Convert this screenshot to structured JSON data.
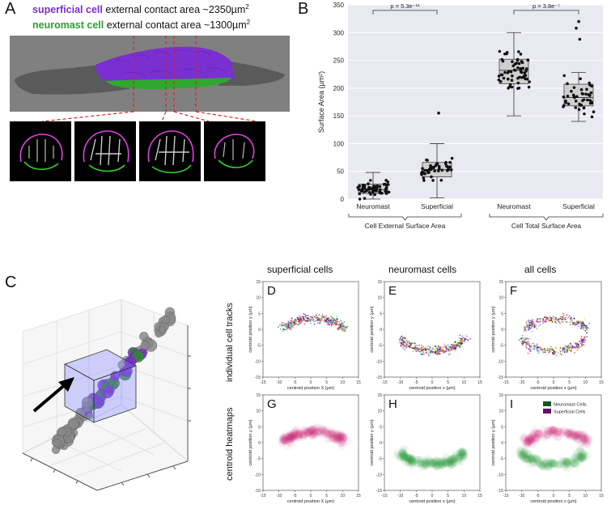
{
  "panel_letters": {
    "A": "A",
    "B": "B",
    "C": "C",
    "D": "D",
    "E": "E",
    "F": "F",
    "G": "G",
    "H": "H",
    "I": "I"
  },
  "panelA": {
    "line1_label": "superficial cell",
    "line1_rest": " external contact area ~2350µm",
    "line2_label": "neuromast cell",
    "line2_rest": " external contact area ~1300µm",
    "sup": "2",
    "colors": {
      "superficial": "#7a2fd0",
      "neuromast": "#2e9e2e",
      "accent": "#e02020"
    }
  },
  "chart_data": [
    {
      "type": "box",
      "panel": "B",
      "ylabel": "Surface Area (µm²)",
      "ylabel_main": "Surface Area (",
      "ylabel_unit": "µm²",
      "ylabel_close": ")",
      "ylim": [
        0,
        350
      ],
      "yticks": [
        "0",
        "50",
        "100",
        "150",
        "200",
        "250",
        "300",
        "350"
      ],
      "categories": [
        "Neuromast",
        "Superficial",
        "Neuromast",
        "Superficial"
      ],
      "groups": [
        "Cell External Surface Area",
        "Cell Total Surface Area"
      ],
      "boxes": [
        {
          "q1": 10,
          "median": 17,
          "q3": 27,
          "low": 0,
          "high": 48
        },
        {
          "q1": 40,
          "median": 53,
          "q3": 66,
          "low": 2,
          "high": 100,
          "outliers": [
            155
          ]
        },
        {
          "q1": 208,
          "median": 232,
          "q3": 252,
          "low": 150,
          "high": 300
        },
        {
          "q1": 168,
          "median": 183,
          "q3": 207,
          "low": 140,
          "high": 228,
          "outliers": [
            288,
            308,
            320
          ]
        }
      ],
      "significance": [
        {
          "label": "p = 5.3e⁻¹¹",
          "pair": [
            0,
            1
          ],
          "y": 340
        },
        {
          "label": "p = 3.8e⁻⁷",
          "pair": [
            2,
            3
          ],
          "y": 340
        }
      ],
      "grid": true
    },
    {
      "type": "scatter",
      "panels": [
        "D",
        "E",
        "F"
      ],
      "title_row": "individual cell tracks",
      "column_titles": [
        "superficial cells",
        "neuromast cells",
        "all cells"
      ],
      "xlabels": [
        "centroid position X (µm)",
        "centroid position x (µm)",
        "centroid position x (µm)"
      ],
      "ylabel": "centroid position y (µm)",
      "xlim": [
        -15,
        15
      ],
      "ylim": [
        -15,
        15
      ],
      "ticks": [
        "-15",
        "-10",
        "-5",
        "0",
        "5",
        "10",
        "15"
      ]
    },
    {
      "type": "heatmap",
      "panels": [
        "G",
        "H",
        "I"
      ],
      "title_row": "centroid heatmaps",
      "xlabels": [
        "centroid position X (µm)",
        "centroid position x (µm)",
        "centroid position x (µm)"
      ],
      "ylabel": "centroid position y (µm)",
      "xlim": [
        -15,
        15
      ],
      "ylim": [
        -15,
        15
      ],
      "ticks": [
        "-15",
        "-10",
        "-5",
        "0",
        "5",
        "10",
        "15"
      ],
      "legend": [
        {
          "name": "Neuromast Cells",
          "color": "#0b5d1e"
        },
        {
          "name": "Superficial Cells",
          "color": "#6a0d6a"
        }
      ]
    }
  ]
}
